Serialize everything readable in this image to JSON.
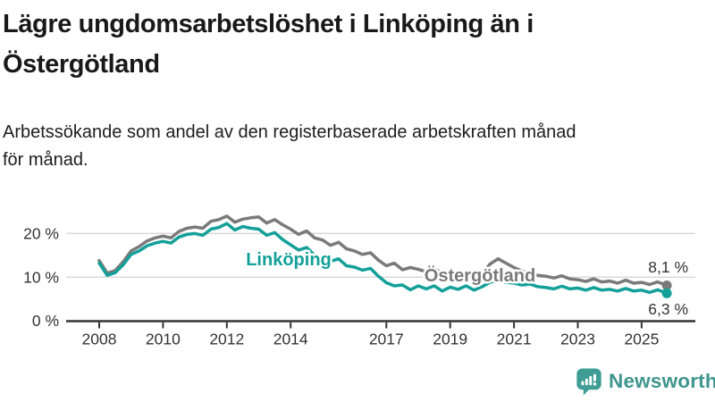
{
  "header": {
    "title_lines": [
      "Lägre ungdomsarbetslöshet i Linköping än i",
      "Östergötland"
    ],
    "subtitle_lines": [
      "Arbetssökande som andel av den registerbaserade arbetskraften månad",
      "för månad."
    ]
  },
  "chart_data": {
    "type": "line",
    "title": "Lägre ungdomsarbetslöshet i Linköping än i Östergötland",
    "subtitle": "Arbetssökande som andel av den registerbaserade arbetskraften månad för månad.",
    "xlabel": "",
    "ylabel": "",
    "x_axis": {
      "tick_values": [
        2008,
        2010,
        2012,
        2014,
        2017,
        2019,
        2021,
        2023,
        2025
      ],
      "tick_labels": [
        "2008",
        "2010",
        "2012",
        "2014",
        "2017",
        "2019",
        "2021",
        "2023",
        "2025"
      ],
      "range": [
        2008,
        2025.79
      ]
    },
    "y_axis": {
      "tick_values": [
        0,
        10,
        20
      ],
      "tick_labels": [
        "0 %",
        "10 %",
        "20 %"
      ],
      "range": [
        0,
        26
      ],
      "grid": true
    },
    "x": [
      2008.0,
      2008.25,
      2008.5,
      2008.75,
      2009.0,
      2009.25,
      2009.5,
      2009.75,
      2010.0,
      2010.25,
      2010.5,
      2010.75,
      2011.0,
      2011.25,
      2011.5,
      2011.75,
      2012.0,
      2012.25,
      2012.5,
      2012.75,
      2013.0,
      2013.25,
      2013.5,
      2013.75,
      2014.0,
      2014.25,
      2014.5,
      2014.75,
      2015.0,
      2015.25,
      2015.5,
      2015.75,
      2016.0,
      2016.25,
      2016.5,
      2016.75,
      2017.0,
      2017.25,
      2017.5,
      2017.75,
      2018.0,
      2018.25,
      2018.5,
      2018.75,
      2019.0,
      2019.25,
      2019.5,
      2019.75,
      2020.0,
      2020.25,
      2020.5,
      2020.75,
      2021.0,
      2021.25,
      2021.5,
      2021.75,
      2022.0,
      2022.25,
      2022.5,
      2022.75,
      2023.0,
      2023.25,
      2023.5,
      2023.75,
      2024.0,
      2024.25,
      2024.5,
      2024.75,
      2025.0,
      2025.25,
      2025.5,
      2025.79
    ],
    "series": [
      {
        "name": "Östergötland",
        "color": "#7a7a7a",
        "end_label": "8,1 %",
        "end_value": 8.1,
        "values": [
          13.8,
          10.9,
          11.5,
          13.5,
          16.0,
          17.0,
          18.3,
          19.0,
          19.4,
          19.0,
          20.5,
          21.2,
          21.5,
          21.2,
          22.8,
          23.2,
          24.0,
          22.6,
          23.3,
          23.6,
          23.8,
          22.4,
          23.2,
          22.0,
          21.0,
          19.8,
          20.6,
          19.0,
          18.5,
          17.3,
          18.0,
          16.5,
          16.0,
          15.2,
          15.6,
          13.9,
          12.6,
          13.2,
          11.7,
          12.2,
          11.8,
          11.2,
          12.0,
          10.8,
          11.0,
          10.4,
          11.0,
          10.2,
          10.8,
          13.0,
          14.2,
          13.2,
          12.2,
          11.4,
          10.8,
          10.4,
          10.2,
          9.8,
          10.3,
          9.6,
          9.4,
          9.0,
          9.6,
          8.9,
          9.1,
          8.6,
          9.3,
          8.6,
          8.8,
          8.3,
          8.9,
          8.1
        ]
      },
      {
        "name": "Linköping",
        "color": "#14a099",
        "end_label": "6,3 %",
        "end_value": 6.3,
        "values": [
          13.2,
          10.4,
          11.0,
          12.8,
          15.2,
          16.0,
          17.2,
          17.8,
          18.2,
          17.8,
          19.2,
          19.8,
          20.0,
          19.6,
          21.0,
          21.4,
          22.3,
          20.8,
          21.6,
          21.2,
          21.0,
          19.6,
          20.2,
          18.6,
          17.4,
          16.2,
          16.8,
          15.0,
          14.6,
          13.6,
          14.2,
          12.6,
          12.3,
          11.6,
          12.0,
          10.2,
          8.7,
          8.0,
          8.2,
          7.1,
          8.0,
          7.3,
          8.0,
          6.8,
          7.7,
          7.2,
          8.0,
          7.0,
          7.8,
          8.8,
          9.3,
          8.8,
          8.6,
          8.2,
          8.4,
          7.8,
          7.6,
          7.3,
          7.9,
          7.3,
          7.5,
          7.0,
          7.6,
          7.0,
          7.2,
          6.8,
          7.4,
          6.8,
          7.0,
          6.5,
          7.1,
          6.3
        ]
      }
    ],
    "legend_position": "inline-labels",
    "colors": {
      "axis_text": "#333333",
      "gridline": "#d9d9d9",
      "axis_line": "#333333"
    }
  },
  "branding": {
    "name": "Newsworthy",
    "color": "#3e968e",
    "icon_color": "#3f9d95",
    "icon": "newsworthy-speech-bubble-bar-chart-icon"
  }
}
